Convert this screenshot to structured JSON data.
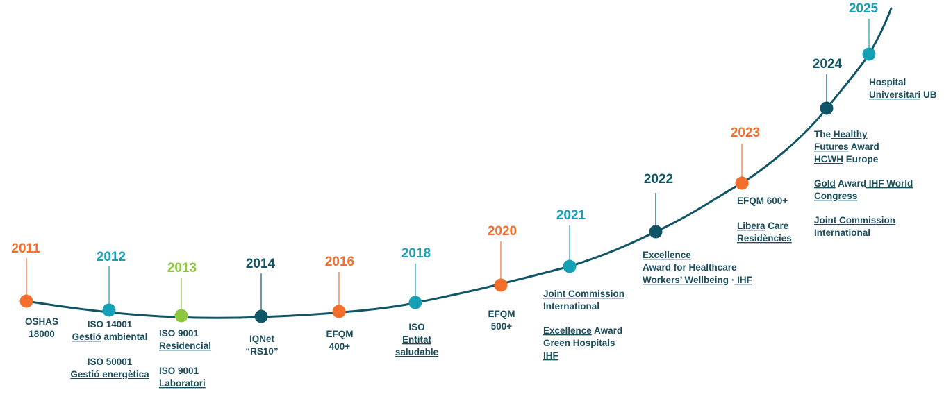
{
  "colors": {
    "curve": "#0f5565",
    "orange": "#f36f2b",
    "teal": "#16a0b5",
    "lime": "#8dc63f",
    "dark": "#0f5565",
    "text": "#1b4d5c",
    "squiggle": "#d9302c"
  },
  "milestones": [
    {
      "id": "m2011",
      "year": "2011",
      "color": "orange",
      "blocks": [
        [
          "OSHAS",
          "18000"
        ]
      ]
    },
    {
      "id": "m2012",
      "year": "2012",
      "color": "teal",
      "blocks": [
        [
          "ISO 14001",
          "Gestió ambiental"
        ],
        [
          "ISO 50001",
          "Gestió energètica"
        ]
      ]
    },
    {
      "id": "m2013",
      "year": "2013",
      "color": "lime",
      "blocks": [
        [
          "ISO 9001",
          "Residencial"
        ],
        [
          "ISO 9001",
          "Laboratori"
        ]
      ]
    },
    {
      "id": "m2014",
      "year": "2014",
      "color": "dark",
      "blocks": [
        [
          "IQNet",
          "“RS10”"
        ]
      ]
    },
    {
      "id": "m2016",
      "year": "2016",
      "color": "orange",
      "blocks": [
        [
          "EFQM",
          "400+"
        ]
      ]
    },
    {
      "id": "m2018",
      "year": "2018",
      "color": "teal",
      "blocks": [
        [
          "ISO",
          "Entitat",
          "saludable"
        ]
      ]
    },
    {
      "id": "m2020",
      "year": "2020",
      "color": "orange",
      "blocks": [
        [
          "EFQM",
          "500+"
        ]
      ]
    },
    {
      "id": "m2021",
      "year": "2021",
      "color": "teal",
      "blocks": [
        [
          "Joint Commission",
          "International"
        ],
        [
          "Excellence Award",
          "Green Hospitals",
          "IHF"
        ]
      ]
    },
    {
      "id": "m2022",
      "year": "2022",
      "color": "dark",
      "blocks": [
        [
          "Excellence",
          "Award for Healthcare",
          "Workers’ Wellbeing · IHF"
        ]
      ]
    },
    {
      "id": "m2023",
      "year": "2023",
      "color": "orange",
      "blocks": [
        [
          "EFQM 600+"
        ],
        [
          "Libera Care",
          "Residències"
        ]
      ]
    },
    {
      "id": "m2024",
      "year": "2024",
      "color": "dark",
      "blocks": [
        [
          "The Healthy",
          "Futures Award",
          "HCWH Europe"
        ],
        [
          "Gold Award IHF World",
          "Congress"
        ],
        [
          "Joint Commission",
          "International"
        ]
      ]
    },
    {
      "id": "m2025",
      "year": "2025",
      "color": "teal",
      "blocks": [
        [
          "Hospital",
          "Universitari UB"
        ]
      ]
    }
  ]
}
